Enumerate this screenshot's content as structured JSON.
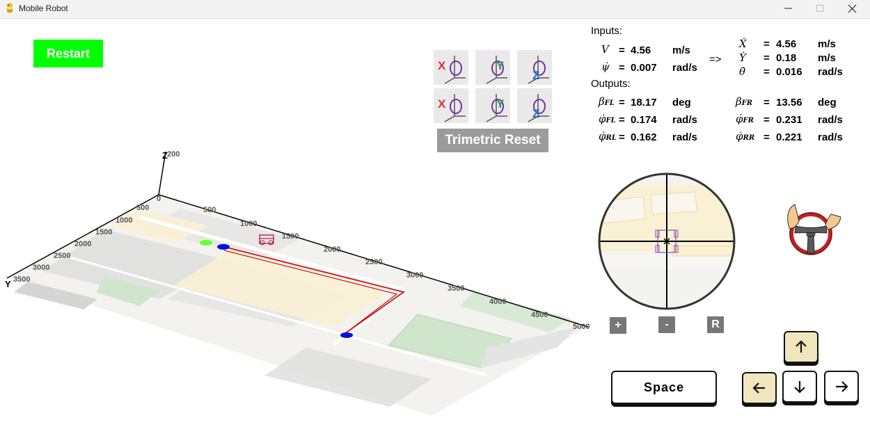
{
  "window": {
    "title": "Mobile Robot"
  },
  "controls": {
    "restart_label": "Restart",
    "trimetric_reset_label": "Trimetric Reset"
  },
  "view_buttons": [
    {
      "name": "rotate-x-positive-button",
      "letter": "X"
    },
    {
      "name": "rotate-y-positive-button",
      "letter": "Y"
    },
    {
      "name": "rotate-z-positive-button",
      "letter": "Z"
    },
    {
      "name": "rotate-x-negative-button",
      "letter": "X"
    },
    {
      "name": "rotate-y-negative-button",
      "letter": "Y"
    },
    {
      "name": "rotate-z-negative-button",
      "letter": "Z"
    }
  ],
  "plot": {
    "axis_labels": {
      "z": "Z",
      "y": "Y"
    },
    "origin_label": "0",
    "z_tick": "200",
    "x_ticks": [
      "500",
      "1000",
      "1500",
      "2000",
      "2500",
      "3000",
      "3500",
      "4000",
      "4500",
      "5000"
    ],
    "y_ticks": [
      "500",
      "1000",
      "1500",
      "2000",
      "2500",
      "3000",
      "3500"
    ],
    "path_color": "#cc1a10",
    "waypoint_color": "#0010dd",
    "start_marker_color": "#66ff33"
  },
  "inputs": {
    "header": "Inputs:",
    "arrow": "=>",
    "left": [
      {
        "symbol": "V",
        "eq": "=",
        "value": "4.56",
        "unit": "m/s"
      },
      {
        "symbol": "ψ̇",
        "eq": "=",
        "value": "0.007",
        "unit": "rad/s"
      }
    ],
    "right": [
      {
        "symbol": "Ẋ",
        "eq": "=",
        "value": "4.56",
        "unit": "m/s"
      },
      {
        "symbol": "Ẏ",
        "eq": "=",
        "value": "0.18",
        "unit": "m/s"
      },
      {
        "symbol": "θ̇",
        "eq": "=",
        "value": "0.016",
        "unit": "rad/s"
      }
    ]
  },
  "outputs": {
    "header": "Outputs:",
    "rows": [
      {
        "l_sym": "β",
        "l_sub": "FL",
        "l_val": "18.17",
        "l_unit": "deg",
        "r_sym": "β",
        "r_sub": "FR",
        "r_val": "13.56",
        "r_unit": "deg"
      },
      {
        "l_sym": "φ̇",
        "l_sub": "FL",
        "l_val": "0.174",
        "l_unit": "rad/s",
        "r_sym": "φ̇",
        "r_sub": "FR",
        "r_val": "0.231",
        "r_unit": "rad/s"
      },
      {
        "l_sym": "φ̇",
        "l_sub": "RL",
        "l_val": "0.162",
        "l_unit": "rad/s",
        "r_sym": "φ̇",
        "r_sub": "RR",
        "r_val": "0.221",
        "r_unit": "rad/s"
      }
    ],
    "eq": "="
  },
  "minimap": {
    "zoom_in_label": "+",
    "zoom_out_label": "-",
    "reset_label": "R"
  },
  "keys": {
    "space_label": "Space",
    "active_keys": [
      "left"
    ]
  },
  "colors": {
    "restart_bg": "#00ff00",
    "gray_button": "#9b9b9b",
    "key_active": "#f1e7bf",
    "steering_red": "#c91f1f"
  }
}
